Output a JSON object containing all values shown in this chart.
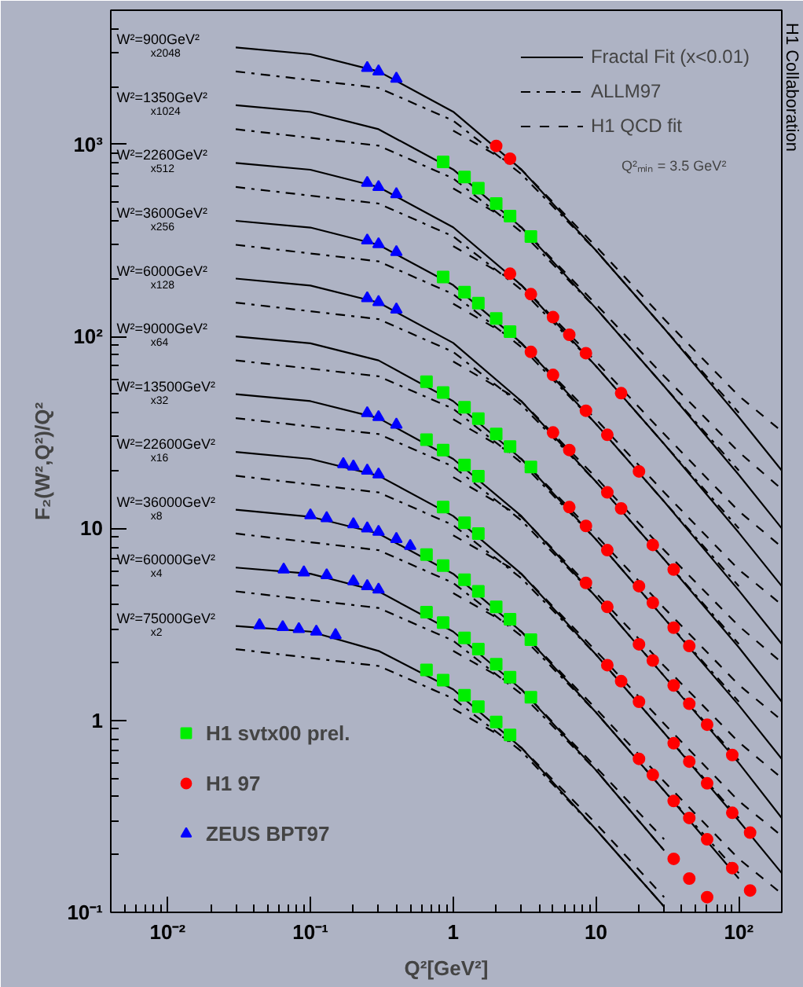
{
  "chart_data": {
    "type": "line",
    "xlabel": "Q²[GeV²]",
    "ylabel": "F₂(W²,Q²)/Q²",
    "log": "xy",
    "grid": false,
    "legend": "top right",
    "xlim": [
      0.004,
      200
    ],
    "ylim": [
      0.1,
      5000
    ],
    "xticks": [
      {
        "value": 0.01,
        "label": "10⁻²"
      },
      {
        "value": 0.1,
        "label": "10⁻¹"
      },
      1,
      10,
      {
        "value": 100,
        "label": "10²"
      }
    ],
    "yticks": [
      {
        "value": 0.1,
        "label": "10⁻¹"
      },
      1,
      10,
      {
        "value": 100,
        "label": "10²"
      },
      {
        "value": 1000,
        "label": "10³"
      }
    ],
    "series": [
      {
        "type": "line",
        "name": "Fractal Fit (x<0.01)",
        "color": "#000000",
        "line_style": "solid",
        "x": [
          0.03,
          0.1,
          0.3,
          1,
          3,
          10,
          30,
          100,
          200
        ],
        "values": [
          3200,
          2950,
          2400,
          1480,
          740,
          280,
          110,
          38,
          20
        ]
      },
      {
        "type": "line",
        "color": "#000000",
        "line_style": "solid",
        "x": [
          0.03,
          0.1,
          0.3,
          1,
          3,
          10,
          30,
          100,
          200
        ],
        "values": [
          1600,
          1475,
          1200,
          740,
          370,
          140,
          55,
          19,
          10
        ]
      },
      {
        "type": "line",
        "color": "#000000",
        "line_style": "solid",
        "x": [
          0.03,
          0.1,
          0.3,
          1,
          3,
          10,
          30,
          100,
          200
        ],
        "values": [
          800,
          738,
          600,
          370,
          185,
          70,
          27.5,
          9.5,
          5
        ]
      },
      {
        "type": "line",
        "color": "#000000",
        "line_style": "solid",
        "x": [
          0.03,
          0.1,
          0.3,
          1,
          3,
          10,
          30,
          100,
          200
        ],
        "values": [
          400,
          369,
          300,
          185,
          92.5,
          35,
          13.8,
          4.75,
          2.5
        ]
      },
      {
        "type": "line",
        "color": "#000000",
        "line_style": "solid",
        "x": [
          0.03,
          0.1,
          0.3,
          1,
          3,
          10,
          30,
          100,
          200
        ],
        "values": [
          200,
          184,
          150,
          92.5,
          46,
          17.5,
          6.9,
          2.4,
          1.25
        ]
      },
      {
        "type": "line",
        "color": "#000000",
        "line_style": "solid",
        "x": [
          0.03,
          0.1,
          0.3,
          1,
          3,
          10,
          30,
          100,
          200
        ],
        "values": [
          100,
          92,
          75,
          46,
          23,
          8.75,
          3.4,
          1.2,
          0.63
        ]
      },
      {
        "type": "line",
        "color": "#000000",
        "line_style": "solid",
        "x": [
          0.03,
          0.1,
          0.3,
          1,
          3,
          10,
          30,
          100,
          200
        ],
        "values": [
          50,
          46,
          37.5,
          23,
          11.6,
          4.4,
          1.7,
          0.6,
          0.31
        ]
      },
      {
        "type": "line",
        "color": "#000000",
        "line_style": "solid",
        "x": [
          0.03,
          0.1,
          0.3,
          1,
          3,
          10,
          30,
          100,
          200
        ],
        "values": [
          25,
          23,
          18.8,
          11.6,
          5.8,
          2.2,
          0.86,
          0.3,
          0.16
        ]
      },
      {
        "type": "line",
        "color": "#000000",
        "line_style": "solid",
        "x": [
          0.03,
          0.1,
          0.3,
          1,
          3,
          10,
          30,
          100
        ],
        "values": [
          12.5,
          11.5,
          9.4,
          5.8,
          2.9,
          1.1,
          0.43,
          0.15
        ]
      },
      {
        "type": "line",
        "color": "#000000",
        "line_style": "solid",
        "x": [
          0.03,
          0.1,
          0.3,
          1,
          3,
          10,
          30
        ],
        "values": [
          6.25,
          5.8,
          4.7,
          2.9,
          1.45,
          0.55,
          0.21
        ]
      },
      {
        "type": "line",
        "color": "#000000",
        "line_style": "solid",
        "x": [
          0.03,
          0.1,
          0.3,
          1,
          3,
          10,
          30
        ],
        "values": [
          3.1,
          2.9,
          2.3,
          1.45,
          0.72,
          0.27,
          0.107
        ]
      },
      {
        "type": "line",
        "name": "ALLM97",
        "color": "#000000",
        "line_style": "dashdot",
        "x": [
          0.03,
          0.3,
          1,
          3,
          10,
          30,
          100
        ],
        "values": [
          2400,
          1970,
          1330,
          700,
          280,
          110,
          40
        ]
      },
      {
        "type": "line",
        "color": "#000000",
        "line_style": "dashdot",
        "x": [
          0.03,
          0.3,
          1,
          3,
          10,
          30,
          100
        ],
        "values": [
          1200,
          985,
          665,
          350,
          140,
          55,
          20
        ]
      },
      {
        "type": "line",
        "color": "#000000",
        "line_style": "dashdot",
        "x": [
          0.03,
          0.3,
          1,
          3,
          10,
          30,
          100
        ],
        "values": [
          600,
          492,
          332,
          175,
          70,
          27.5,
          10
        ]
      },
      {
        "type": "line",
        "color": "#000000",
        "line_style": "dashdot",
        "x": [
          0.03,
          0.3,
          1,
          3,
          10,
          30,
          100
        ],
        "values": [
          300,
          246,
          166,
          88,
          35,
          13.8,
          5
        ]
      },
      {
        "type": "line",
        "color": "#000000",
        "line_style": "dashdot",
        "x": [
          0.03,
          0.3,
          1,
          3,
          10,
          30,
          100
        ],
        "values": [
          150,
          123,
          83,
          44,
          17.5,
          6.9,
          2.5
        ]
      },
      {
        "type": "line",
        "color": "#000000",
        "line_style": "dashdot",
        "x": [
          0.03,
          0.3,
          1,
          3,
          10,
          30,
          100
        ],
        "values": [
          75,
          62,
          42,
          22,
          8.75,
          3.4,
          1.25
        ]
      },
      {
        "type": "line",
        "color": "#000000",
        "line_style": "dashdot",
        "x": [
          0.03,
          0.3,
          1,
          3,
          10,
          30,
          100
        ],
        "values": [
          37.5,
          31,
          21,
          11,
          4.4,
          1.7,
          0.62
        ]
      },
      {
        "type": "line",
        "color": "#000000",
        "line_style": "dashdot",
        "x": [
          0.03,
          0.3,
          1,
          3,
          10,
          30,
          100
        ],
        "values": [
          18.8,
          15.4,
          10.4,
          5.5,
          2.2,
          0.86,
          0.31
        ]
      },
      {
        "type": "line",
        "color": "#000000",
        "line_style": "dashdot",
        "x": [
          0.03,
          0.3,
          1,
          3,
          10,
          30,
          100
        ],
        "values": [
          9.4,
          7.7,
          5.2,
          2.75,
          1.1,
          0.43,
          0.16
        ]
      },
      {
        "type": "line",
        "color": "#000000",
        "line_style": "dashdot",
        "x": [
          0.03,
          0.3,
          1,
          3,
          10,
          30
        ],
        "values": [
          4.7,
          3.85,
          2.6,
          1.37,
          0.55,
          0.21
        ]
      },
      {
        "type": "line",
        "color": "#000000",
        "line_style": "dashdot",
        "x": [
          0.03,
          0.3,
          1,
          3,
          10,
          30
        ],
        "values": [
          2.35,
          1.92,
          1.3,
          0.69,
          0.27,
          0.107
        ]
      },
      {
        "type": "line",
        "name": "H1 QCD fit",
        "color": "#000000",
        "line_style": "dashed",
        "x": [
          1,
          3,
          10,
          30,
          100,
          200
        ],
        "values": [
          1180,
          740,
          294,
          123,
          49,
          32
        ]
      },
      {
        "type": "line",
        "color": "#000000",
        "line_style": "dashed",
        "x": [
          1,
          3,
          10,
          30,
          100,
          200
        ],
        "values": [
          590,
          370,
          147,
          62,
          25,
          16
        ]
      },
      {
        "type": "line",
        "color": "#000000",
        "line_style": "dashed",
        "x": [
          1,
          3,
          10,
          30,
          100,
          200
        ],
        "values": [
          295,
          185,
          74,
          31,
          12.3,
          8
        ]
      },
      {
        "type": "line",
        "color": "#000000",
        "line_style": "dashed",
        "x": [
          1,
          3,
          10,
          30,
          100,
          200
        ],
        "values": [
          148,
          92,
          37,
          15.4,
          6.1,
          4
        ]
      },
      {
        "type": "line",
        "color": "#000000",
        "line_style": "dashed",
        "x": [
          1,
          3,
          10,
          30,
          100,
          200
        ],
        "values": [
          74,
          46,
          18.4,
          7.7,
          3.1,
          2
        ]
      },
      {
        "type": "line",
        "color": "#000000",
        "line_style": "dashed",
        "x": [
          1,
          3,
          10,
          30,
          100,
          200
        ],
        "values": [
          37,
          23,
          9.2,
          3.85,
          1.53,
          1
        ]
      },
      {
        "type": "line",
        "color": "#000000",
        "line_style": "dashed",
        "x": [
          1,
          3,
          10,
          30,
          100,
          200
        ],
        "values": [
          18.5,
          11.5,
          4.6,
          1.92,
          0.77,
          0.5
        ]
      },
      {
        "type": "line",
        "color": "#000000",
        "line_style": "dashed",
        "x": [
          1,
          3,
          10,
          30,
          100,
          200
        ],
        "values": [
          9.2,
          5.8,
          2.3,
          0.96,
          0.38,
          0.25
        ]
      },
      {
        "type": "line",
        "color": "#000000",
        "line_style": "dashed",
        "x": [
          1,
          3,
          10,
          30,
          100,
          200
        ],
        "values": [
          4.6,
          2.9,
          1.15,
          0.48,
          0.19,
          0.125
        ]
      },
      {
        "type": "line",
        "color": "#000000",
        "line_style": "dashed",
        "x": [
          1,
          3,
          10,
          30
        ],
        "values": [
          2.3,
          1.45,
          0.57,
          0.24
        ]
      },
      {
        "type": "line",
        "color": "#000000",
        "line_style": "dashed",
        "x": [
          1,
          3,
          10,
          30
        ],
        "values": [
          1.15,
          0.72,
          0.29,
          0.12
        ]
      },
      {
        "type": "scatter",
        "name": "H1 svtx00 prel.",
        "color": "#00ee00",
        "marker": "square",
        "x": [
          0.85,
          1.2,
          1.5,
          2,
          2.5,
          3.5,
          0.85,
          1.2,
          1.5,
          2,
          2.5,
          0.65,
          0.85,
          1.2,
          1.5,
          2,
          2.5,
          3.5,
          0.65,
          0.85,
          1.2,
          1.5,
          0.85,
          1.2,
          1.5,
          0.65,
          0.85,
          1.2,
          1.5,
          2,
          2.5,
          3.5,
          0.65,
          0.85,
          1.2,
          1.5,
          2,
          2.5,
          3.5,
          0.65,
          0.85,
          1.2,
          1.5,
          2,
          2.5
        ],
        "values": [
          811,
          676,
          592,
          492,
          423,
          331,
          204,
          170,
          149,
          124,
          106,
          58,
          51,
          42.7,
          37.3,
          31,
          26.7,
          20.9,
          29,
          25.6,
          21.4,
          18.7,
          12.9,
          10.7,
          9.4,
          7.3,
          6.4,
          5.4,
          4.7,
          3.9,
          3.36,
          2.63,
          3.66,
          3.23,
          2.69,
          2.35,
          1.96,
          1.68,
          1.32,
          1.83,
          1.62,
          1.35,
          1.18,
          0.98,
          0.84
        ]
      },
      {
        "type": "scatter",
        "name": "H1 97",
        "color": "#ff0000",
        "marker": "circle",
        "x": [
          2,
          2.5,
          2.5,
          3.5,
          5,
          6.5,
          8.5,
          15,
          3.5,
          5,
          8.5,
          12,
          20,
          5,
          6.5,
          12,
          15,
          25,
          35,
          6.5,
          8.5,
          12,
          20,
          25,
          35,
          45,
          8.5,
          12,
          20,
          25,
          35,
          45,
          60,
          90,
          12,
          15,
          20,
          35,
          45,
          60,
          90,
          120,
          20,
          25,
          35,
          45,
          60,
          90,
          120,
          35,
          45,
          60
        ],
        "values": [
          982,
          843,
          212,
          166,
          126,
          102,
          81.8,
          50.6,
          83,
          63,
          41,
          30.7,
          19.8,
          31.6,
          25.6,
          15.4,
          12.7,
          8.2,
          6.1,
          12.9,
          10.3,
          7.7,
          5.0,
          4.1,
          3.04,
          2.44,
          5.2,
          3.9,
          2.49,
          2.05,
          1.52,
          1.22,
          0.95,
          0.66,
          1.94,
          1.6,
          1.25,
          0.76,
          0.61,
          0.47,
          0.33,
          0.26,
          0.63,
          0.52,
          0.38,
          0.31,
          0.24,
          0.17,
          0.13,
          0.19,
          0.15,
          0.12
        ]
      },
      {
        "type": "scatter",
        "name": "ZEUS BPT97",
        "color": "#0000ff",
        "marker": "triangle",
        "x": [
          0.25,
          0.3,
          0.4,
          0.25,
          0.3,
          0.4,
          0.25,
          0.3,
          0.4,
          0.25,
          0.3,
          0.4,
          0.25,
          0.3,
          0.4,
          0.17,
          0.2,
          0.25,
          0.3,
          0.1,
          0.13,
          0.2,
          0.25,
          0.3,
          0.4,
          0.5,
          0.065,
          0.09,
          0.13,
          0.2,
          0.25,
          0.3,
          0.044,
          0.064,
          0.083,
          0.11,
          0.15
        ],
        "values": [
          2500,
          2400,
          2200,
          630,
          600,
          550,
          316,
          302,
          275,
          158,
          151,
          138,
          39.8,
          38,
          34.7,
          21.6,
          21.0,
          20.0,
          19.1,
          11.7,
          11.3,
          10.5,
          10.0,
          9.6,
          8.8,
          8.1,
          6.1,
          5.9,
          5.7,
          5.3,
          5.0,
          4.8,
          3.13,
          3.06,
          2.99,
          2.9,
          2.78
        ]
      }
    ],
    "annotations": [
      "W²=900GeV²",
      "x2048",
      "W²=1350GeV²",
      "x1024",
      "W²=2260GeV²",
      "x512",
      "W²=3600GeV²",
      "x256",
      "W²=6000GeV²",
      "x128",
      "W²=9000GeV²",
      "x64",
      "W²=13500GeV²",
      "x32",
      "W²=22600GeV²",
      "x16",
      "W²=36000GeV²",
      "x8",
      "W²=60000GeV²",
      "x4",
      "W²=75000GeV²",
      "x2",
      "Q²ₘᵢₙ = 3.5 GeV²",
      "H1 Collaboration"
    ]
  }
}
